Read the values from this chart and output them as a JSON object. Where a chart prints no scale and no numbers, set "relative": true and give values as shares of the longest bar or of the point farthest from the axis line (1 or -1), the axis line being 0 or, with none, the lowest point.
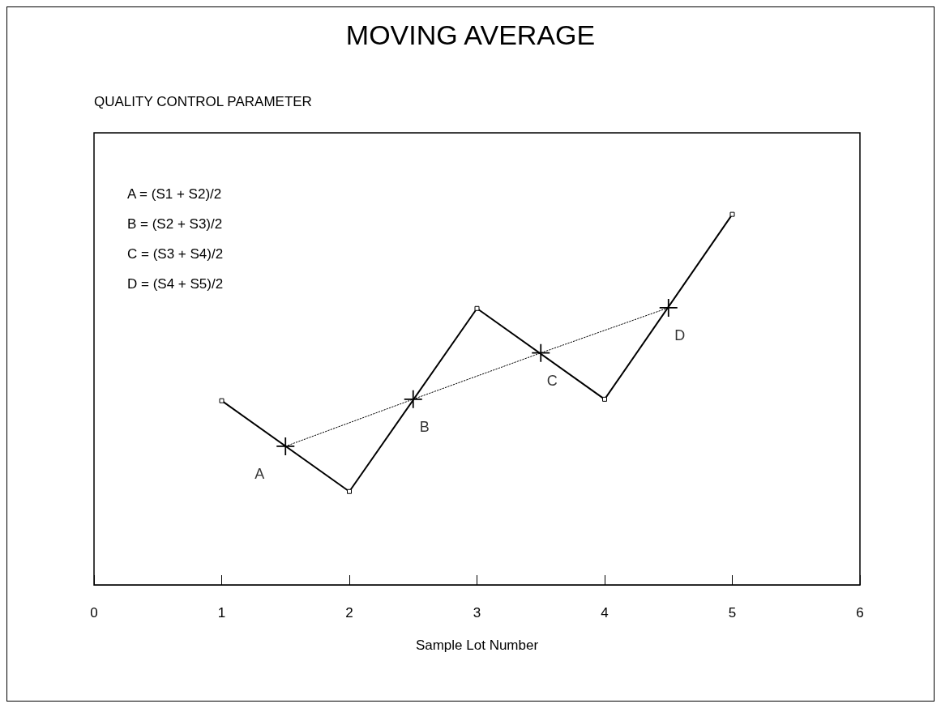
{
  "chart_data": {
    "type": "line",
    "title": "MOVING AVERAGE",
    "xlabel": "Sample Lot Number",
    "relative": true,
    "xlim": [
      0,
      6
    ],
    "xticks": [
      0,
      1,
      2,
      3,
      4,
      5,
      6
    ],
    "grid": false,
    "series": [
      {
        "color": "#000000",
        "x": [
          1,
          2,
          3,
          4,
          5
        ],
        "values": [
          0.497,
          0.252,
          0.746,
          0.501,
          1.0
        ],
        "marker": "square",
        "line_style": "solid"
      },
      {
        "color": "#000000",
        "x": [
          1.5,
          2.5,
          3.5,
          4.5
        ],
        "values": [
          0.374,
          0.501,
          0.626,
          0.748
        ],
        "marker": "cross",
        "line_style": "dotted"
      }
    ],
    "annotations": [
      "QUALITY CONTROL PARAMETER",
      "A = (S1 + S2)/2",
      "B = (S2 + S3)/2",
      "C = (S3 + S4)/2",
      "D = (S4 + S5)/2",
      {
        "text": "A",
        "x": 1.5,
        "y": 0.374
      },
      {
        "text": "B",
        "x": 2.5,
        "y": 0.501
      },
      {
        "text": "C",
        "x": 3.5,
        "y": 0.626
      },
      {
        "text": "D",
        "x": 4.5,
        "y": 0.748
      }
    ]
  }
}
